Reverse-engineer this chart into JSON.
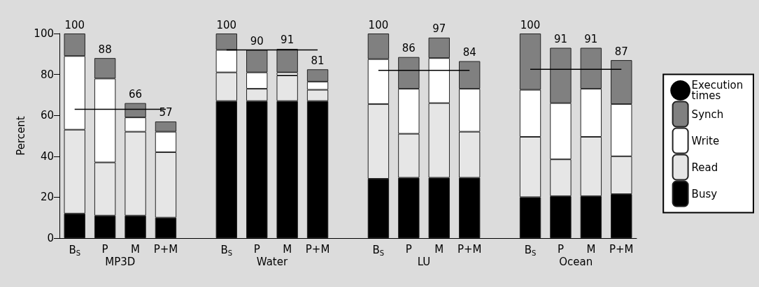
{
  "chart_data": {
    "type": "bar",
    "stacked": true,
    "ylabel": "Percent",
    "categories": [
      "B$_{S}$",
      "P",
      "M",
      "P+M",
      null,
      "B$_{S}$",
      "P",
      "M",
      "P+M",
      null,
      "B$_{S}$",
      "P",
      "M",
      "P+M",
      null,
      "B$_{S}$",
      "P",
      "M",
      "P+M"
    ],
    "series": [
      {
        "name": "Busy",
        "color": "#000000",
        "values": [
          12,
          11,
          11,
          10,
          null,
          67,
          67,
          67,
          67,
          null,
          29,
          29.5,
          29.5,
          29.5,
          null,
          20,
          20.5,
          20.5,
          21.5
        ]
      },
      {
        "name": "Read",
        "color": "#e6e6e6",
        "values": [
          41,
          26,
          41,
          32,
          null,
          14,
          6,
          12.5,
          5.5,
          null,
          36.5,
          21.5,
          36.5,
          22.5,
          null,
          29.5,
          18,
          29,
          18.5
        ]
      },
      {
        "name": "Write",
        "color": "#ffffff",
        "values": [
          36,
          41,
          7,
          10,
          null,
          11,
          8,
          1.5,
          4,
          null,
          22,
          22,
          22,
          21,
          null,
          23,
          27.5,
          23.5,
          25.5
        ]
      },
      {
        "name": "Synch",
        "color": "#808080",
        "values": [
          11,
          10,
          7,
          5,
          null,
          8,
          11,
          11.5,
          6,
          null,
          12.5,
          15.5,
          10,
          13.5,
          null,
          27.5,
          27,
          20,
          21.5
        ]
      },
      {
        "name": "Execution times",
        "type": "line",
        "color": "#000000",
        "values": [
          63,
          63,
          63,
          63,
          null,
          92,
          92,
          92,
          92,
          null,
          82,
          82,
          82,
          82,
          null,
          82.5,
          82.5,
          82.5,
          82.5
        ]
      }
    ],
    "totals": [
      "100",
      "88",
      "66",
      "57",
      null,
      "100",
      "90",
      "91",
      "81",
      null,
      "100",
      "86",
      "97",
      "84",
      null,
      "100",
      "91",
      "91",
      "87"
    ],
    "annotations": [
      "MP3D",
      "Water",
      "LU",
      "Ocean"
    ],
    "ylim": [
      0,
      100
    ],
    "yticks": [
      0,
      20,
      40,
      60,
      80,
      100
    ],
    "grid": false,
    "legend": "right",
    "marker": "none",
    "line_style": "solid"
  }
}
